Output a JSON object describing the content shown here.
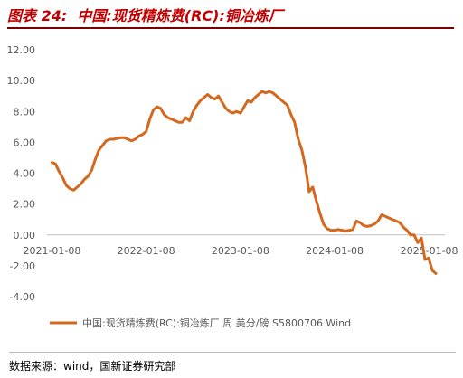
{
  "figure": {
    "label": "图表 24:",
    "title": "中国:现货精炼费(RC):铜冶炼厂",
    "source": "数据来源：wind，国新证券研究部"
  },
  "chart_data": {
    "type": "line",
    "title": "中国:现货精炼费(RC):铜冶炼厂",
    "xlabel": "",
    "ylabel": "",
    "x_ticks": [
      "2021-01-08",
      "2022-01-08",
      "2023-01-08",
      "2024-01-08",
      "2025-01-08"
    ],
    "y_ticks": [
      "12.00",
      "10.00",
      "8.00",
      "6.00",
      "4.00",
      "2.00",
      "0.00",
      "-2.00",
      "-4.00"
    ],
    "ylim": [
      -4,
      12
    ],
    "xlim": [
      "2020-12-20",
      "2025-03-10"
    ],
    "grid": false,
    "legend_position": "bottom",
    "colors": {
      "line": "#d2691e"
    },
    "series": [
      {
        "name": "中国:现货精炼费(RC):铜冶炼厂 周 美分/磅 S5800706 Wind",
        "points": [
          [
            "2021-01-08",
            4.7
          ],
          [
            "2021-01-22",
            4.6
          ],
          [
            "2021-02-05",
            4.1
          ],
          [
            "2021-02-19",
            3.7
          ],
          [
            "2021-03-05",
            3.2
          ],
          [
            "2021-03-19",
            3.0
          ],
          [
            "2021-04-02",
            2.9
          ],
          [
            "2021-04-16",
            3.1
          ],
          [
            "2021-04-30",
            3.3
          ],
          [
            "2021-05-14",
            3.6
          ],
          [
            "2021-05-28",
            3.8
          ],
          [
            "2021-06-11",
            4.2
          ],
          [
            "2021-06-25",
            4.9
          ],
          [
            "2021-07-09",
            5.5
          ],
          [
            "2021-07-23",
            5.8
          ],
          [
            "2021-08-06",
            6.1
          ],
          [
            "2021-08-20",
            6.2
          ],
          [
            "2021-09-03",
            6.2
          ],
          [
            "2021-09-17",
            6.25
          ],
          [
            "2021-10-01",
            6.3
          ],
          [
            "2021-10-15",
            6.3
          ],
          [
            "2021-10-29",
            6.2
          ],
          [
            "2021-11-12",
            6.1
          ],
          [
            "2021-11-26",
            6.2
          ],
          [
            "2021-12-10",
            6.4
          ],
          [
            "2021-12-24",
            6.5
          ],
          [
            "2022-01-08",
            6.7
          ],
          [
            "2022-01-22",
            7.5
          ],
          [
            "2022-02-05",
            8.1
          ],
          [
            "2022-02-19",
            8.3
          ],
          [
            "2022-03-05",
            8.2
          ],
          [
            "2022-03-19",
            7.8
          ],
          [
            "2022-04-02",
            7.6
          ],
          [
            "2022-04-16",
            7.5
          ],
          [
            "2022-04-30",
            7.4
          ],
          [
            "2022-05-14",
            7.3
          ],
          [
            "2022-05-28",
            7.3
          ],
          [
            "2022-06-11",
            7.6
          ],
          [
            "2022-06-25",
            7.4
          ],
          [
            "2022-07-09",
            8.0
          ],
          [
            "2022-07-23",
            8.4
          ],
          [
            "2022-08-06",
            8.7
          ],
          [
            "2022-08-20",
            8.9
          ],
          [
            "2022-09-03",
            9.1
          ],
          [
            "2022-09-17",
            8.9
          ],
          [
            "2022-10-01",
            8.8
          ],
          [
            "2022-10-15",
            9.0
          ],
          [
            "2022-10-29",
            8.6
          ],
          [
            "2022-11-12",
            8.2
          ],
          [
            "2022-11-26",
            8.0
          ],
          [
            "2022-12-10",
            7.9
          ],
          [
            "2022-12-24",
            8.0
          ],
          [
            "2023-01-08",
            7.9
          ],
          [
            "2023-01-22",
            8.3
          ],
          [
            "2023-02-05",
            8.7
          ],
          [
            "2023-02-19",
            8.6
          ],
          [
            "2023-03-05",
            8.9
          ],
          [
            "2023-03-19",
            9.1
          ],
          [
            "2023-04-02",
            9.3
          ],
          [
            "2023-04-16",
            9.2
          ],
          [
            "2023-04-30",
            9.3
          ],
          [
            "2023-05-14",
            9.2
          ],
          [
            "2023-05-28",
            9.0
          ],
          [
            "2023-06-11",
            8.8
          ],
          [
            "2023-06-25",
            8.6
          ],
          [
            "2023-07-09",
            8.4
          ],
          [
            "2023-07-23",
            7.8
          ],
          [
            "2023-08-06",
            7.3
          ],
          [
            "2023-08-20",
            6.2
          ],
          [
            "2023-09-03",
            5.5
          ],
          [
            "2023-09-17",
            4.4
          ],
          [
            "2023-10-01",
            2.8
          ],
          [
            "2023-10-15",
            3.1
          ],
          [
            "2023-10-29",
            2.2
          ],
          [
            "2023-11-12",
            1.4
          ],
          [
            "2023-11-26",
            0.7
          ],
          [
            "2023-12-10",
            0.4
          ],
          [
            "2023-12-24",
            0.3
          ],
          [
            "2024-01-08",
            0.3
          ],
          [
            "2024-01-22",
            0.35
          ],
          [
            "2024-02-05",
            0.3
          ],
          [
            "2024-02-19",
            0.25
          ],
          [
            "2024-03-04",
            0.3
          ],
          [
            "2024-03-18",
            0.35
          ],
          [
            "2024-04-01",
            0.9
          ],
          [
            "2024-04-15",
            0.8
          ],
          [
            "2024-04-29",
            0.6
          ],
          [
            "2024-05-13",
            0.55
          ],
          [
            "2024-05-27",
            0.6
          ],
          [
            "2024-06-10",
            0.7
          ],
          [
            "2024-06-24",
            0.9
          ],
          [
            "2024-07-08",
            1.3
          ],
          [
            "2024-07-22",
            1.2
          ],
          [
            "2024-08-05",
            1.1
          ],
          [
            "2024-08-19",
            1.0
          ],
          [
            "2024-09-02",
            0.9
          ],
          [
            "2024-09-16",
            0.8
          ],
          [
            "2024-09-30",
            0.5
          ],
          [
            "2024-10-14",
            0.3
          ],
          [
            "2024-10-28",
            0.0
          ],
          [
            "2024-11-11",
            0.0
          ],
          [
            "2024-11-25",
            -0.5
          ],
          [
            "2024-12-09",
            -0.2
          ],
          [
            "2024-12-23",
            -1.6
          ],
          [
            "2025-01-06",
            -1.5
          ],
          [
            "2025-01-20",
            -2.3
          ],
          [
            "2025-02-03",
            -2.5
          ]
        ]
      }
    ]
  }
}
